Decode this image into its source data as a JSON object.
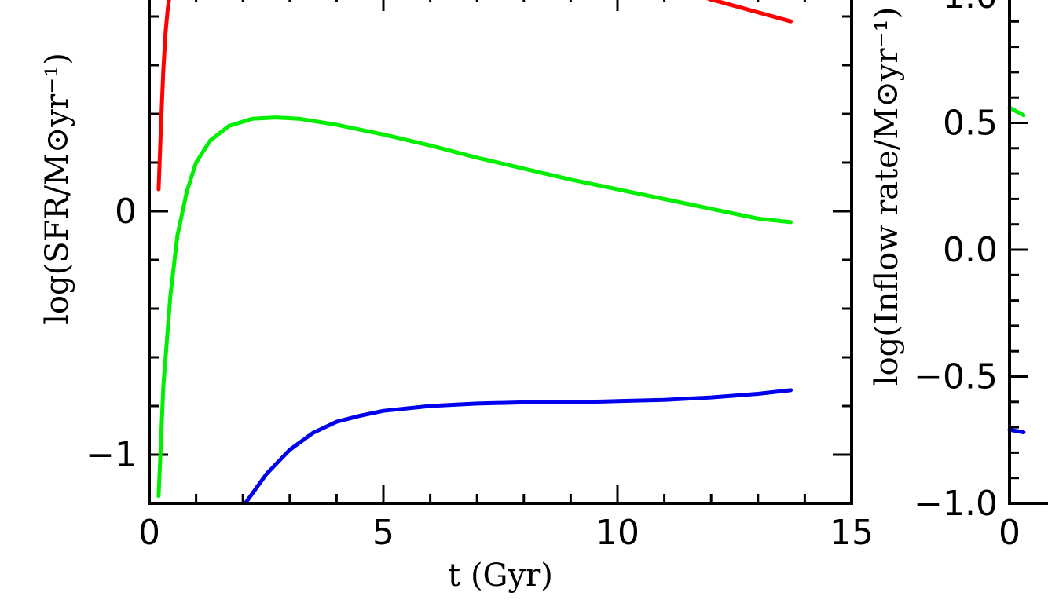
{
  "chart_data": [
    {
      "type": "line",
      "xlabel": "t (Gyr)",
      "ylabel": "log(SFR/M⊙yr⁻¹)",
      "xlim": [
        0,
        15
      ],
      "ylim": [
        -1.2,
        0.85
      ],
      "x_ticks": [
        {
          "value": 0,
          "label": "0"
        },
        {
          "value": 5,
          "label": "5"
        },
        {
          "value": 10,
          "label": "10"
        },
        {
          "value": 15,
          "label": "15"
        }
      ],
      "y_ticks": [
        {
          "value": -1,
          "label": "−1"
        },
        {
          "value": 0,
          "label": "0"
        }
      ],
      "x_minor_step": 1,
      "y_minor_step": 0.2,
      "series": [
        {
          "color": "#ff0000",
          "points": [
            [
              0.2,
              0.09
            ],
            [
              0.25,
              0.35
            ],
            [
              0.3,
              0.58
            ],
            [
              0.35,
              0.74
            ],
            [
              0.4,
              0.84
            ],
            [
              0.45,
              0.9
            ],
            [
              11.2,
              0.92
            ],
            [
              12.0,
              0.87
            ],
            [
              13.7,
              0.78
            ]
          ]
        },
        {
          "color": "#00ee00",
          "points": [
            [
              0.2,
              -1.17
            ],
            [
              0.3,
              -0.72
            ],
            [
              0.45,
              -0.35
            ],
            [
              0.6,
              -0.1
            ],
            [
              0.8,
              0.08
            ],
            [
              1.0,
              0.2
            ],
            [
              1.3,
              0.29
            ],
            [
              1.7,
              0.35
            ],
            [
              2.2,
              0.38
            ],
            [
              2.7,
              0.385
            ],
            [
              3.2,
              0.38
            ],
            [
              4.0,
              0.355
            ],
            [
              5.0,
              0.315
            ],
            [
              6.0,
              0.27
            ],
            [
              7.0,
              0.22
            ],
            [
              8.0,
              0.175
            ],
            [
              9.0,
              0.13
            ],
            [
              10.0,
              0.09
            ],
            [
              11.0,
              0.05
            ],
            [
              12.0,
              0.01
            ],
            [
              13.0,
              -0.03
            ],
            [
              13.7,
              -0.045
            ]
          ]
        },
        {
          "color": "#0000ee",
          "points": [
            [
              2.05,
              -1.2
            ],
            [
              2.5,
              -1.08
            ],
            [
              3.0,
              -0.98
            ],
            [
              3.5,
              -0.91
            ],
            [
              4.0,
              -0.865
            ],
            [
              4.5,
              -0.84
            ],
            [
              5.0,
              -0.82
            ],
            [
              6.0,
              -0.8
            ],
            [
              7.0,
              -0.79
            ],
            [
              8.0,
              -0.785
            ],
            [
              9.0,
              -0.785
            ],
            [
              10.0,
              -0.78
            ],
            [
              11.0,
              -0.775
            ],
            [
              12.0,
              -0.765
            ],
            [
              13.0,
              -0.75
            ],
            [
              13.7,
              -0.735
            ]
          ]
        }
      ]
    },
    {
      "type": "line",
      "ylabel": "log(Inflow rate/M⊙yr⁻¹)",
      "ylim": [
        -1.0,
        1.0
      ],
      "x_ticks": [
        {
          "value": 0,
          "label": "0"
        }
      ],
      "y_ticks": [
        {
          "value": 1.0,
          "label": "1.0"
        },
        {
          "value": 0.5,
          "label": "0.5"
        },
        {
          "value": 0.0,
          "label": "0.0"
        },
        {
          "value": -0.5,
          "label": "−0.5"
        },
        {
          "value": -1.0,
          "label": "−1.0"
        }
      ],
      "y_minor_step": 0.1,
      "series": [
        {
          "color": "#00ee00",
          "points": [
            [
              0.0,
              0.56
            ],
            [
              0.3,
              0.53
            ]
          ]
        },
        {
          "color": "#0000ee",
          "points": [
            [
              0.0,
              -0.71
            ],
            [
              0.3,
              -0.72
            ]
          ]
        }
      ]
    }
  ]
}
